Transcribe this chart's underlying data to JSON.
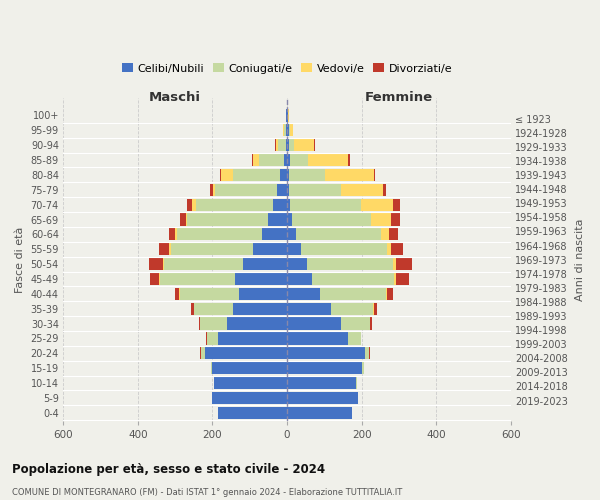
{
  "age_groups": [
    "0-4",
    "5-9",
    "10-14",
    "15-19",
    "20-24",
    "25-29",
    "30-34",
    "35-39",
    "40-44",
    "45-49",
    "50-54",
    "55-59",
    "60-64",
    "65-69",
    "70-74",
    "75-79",
    "80-84",
    "85-89",
    "90-94",
    "95-99",
    "100+"
  ],
  "birth_years": [
    "2019-2023",
    "2014-2018",
    "2009-2013",
    "2004-2008",
    "1999-2003",
    "1994-1998",
    "1989-1993",
    "1984-1988",
    "1979-1983",
    "1974-1978",
    "1969-1973",
    "1964-1968",
    "1959-1963",
    "1954-1958",
    "1949-1953",
    "1944-1948",
    "1939-1943",
    "1934-1938",
    "1929-1933",
    "1924-1928",
    "≤ 1923"
  ],
  "male_celibe": [
    185,
    200,
    195,
    200,
    220,
    185,
    160,
    145,
    130,
    140,
    118,
    92,
    68,
    52,
    38,
    28,
    18,
    8,
    4,
    4,
    2
  ],
  "male_coniugato": [
    0,
    0,
    2,
    5,
    10,
    30,
    72,
    105,
    158,
    200,
    213,
    220,
    228,
    215,
    207,
    165,
    128,
    68,
    20,
    5,
    0
  ],
  "male_vedovo": [
    0,
    0,
    0,
    0,
    0,
    0,
    0,
    0,
    2,
    2,
    2,
    3,
    4,
    5,
    10,
    5,
    30,
    15,
    5,
    2,
    0
  ],
  "male_divorziato": [
    0,
    0,
    0,
    0,
    2,
    2,
    5,
    8,
    10,
    25,
    38,
    28,
    17,
    14,
    14,
    8,
    4,
    2,
    2,
    0,
    0
  ],
  "female_celibe": [
    175,
    190,
    185,
    200,
    210,
    162,
    145,
    118,
    88,
    68,
    53,
    38,
    23,
    14,
    9,
    5,
    4,
    8,
    4,
    4,
    2
  ],
  "female_coniugato": [
    0,
    0,
    3,
    5,
    10,
    35,
    77,
    112,
    178,
    218,
    232,
    230,
    228,
    212,
    188,
    140,
    98,
    48,
    14,
    3,
    0
  ],
  "female_vedova": [
    0,
    0,
    0,
    0,
    0,
    0,
    0,
    2,
    3,
    5,
    8,
    10,
    23,
    53,
    88,
    112,
    130,
    108,
    55,
    10,
    2
  ],
  "female_divorziata": [
    0,
    0,
    0,
    0,
    2,
    2,
    5,
    10,
    14,
    35,
    43,
    33,
    23,
    23,
    18,
    8,
    4,
    4,
    2,
    0,
    0
  ],
  "colors": {
    "celibe": "#4472C4",
    "coniugato": "#c5d9a0",
    "vedovo": "#FFD966",
    "divorziato": "#C0392B"
  },
  "title": "Popolazione per età, sesso e stato civile - 2024",
  "subtitle": "COMUNE DI MONTEGRANARO (FM) - Dati ISTAT 1° gennaio 2024 - Elaborazione TUTTITALIA.IT",
  "ylabel": "Fasce di età",
  "ylabel_right": "Anni di nascita",
  "xlabel_maschi": "Maschi",
  "xlabel_femmine": "Femmine",
  "xlim": 600,
  "bg_color": "#f0f0ea",
  "legend_labels": [
    "Celibi/Nubili",
    "Coniugati/e",
    "Vedovi/e",
    "Divorziati/e"
  ]
}
